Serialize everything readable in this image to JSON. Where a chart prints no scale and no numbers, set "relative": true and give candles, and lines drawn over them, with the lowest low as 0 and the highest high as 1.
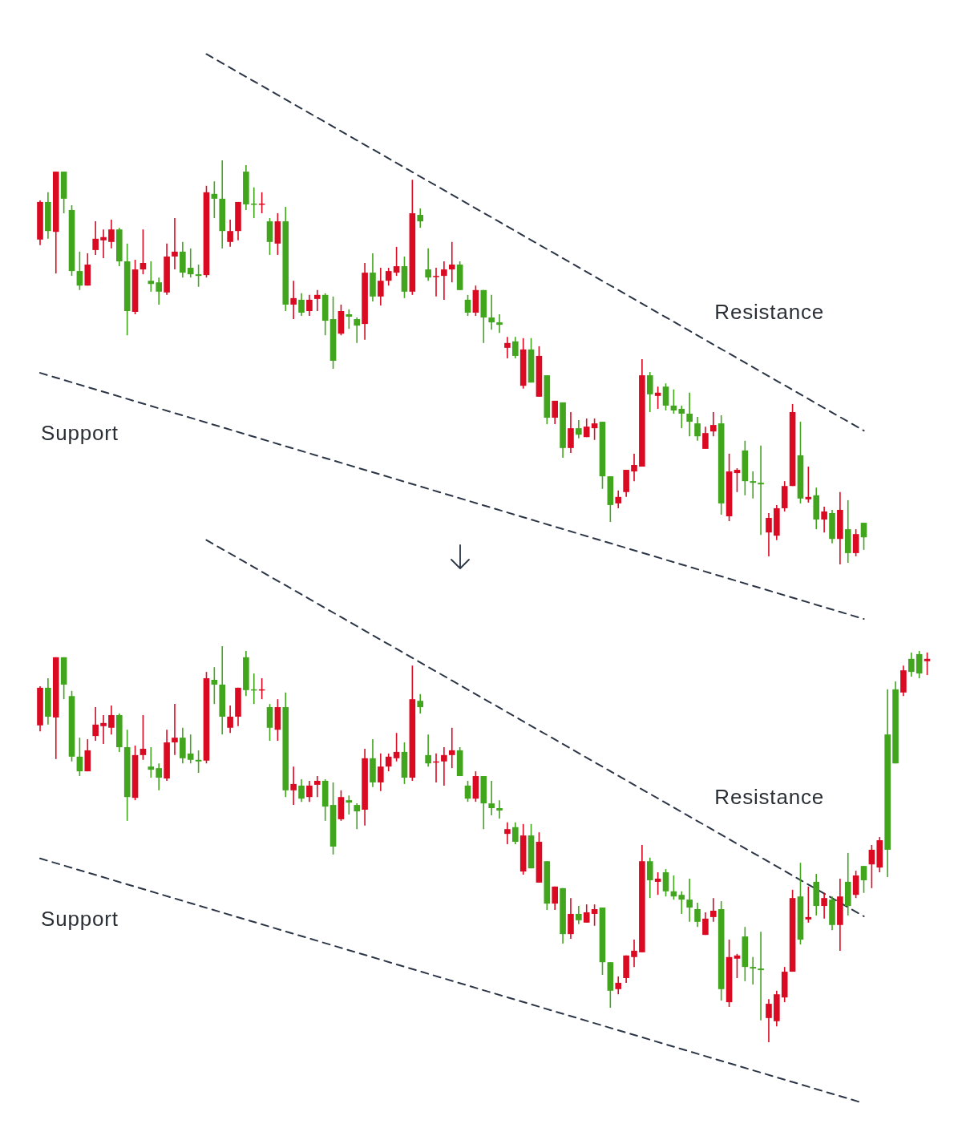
{
  "chart_data": [
    {
      "type": "candlestick",
      "relative": true,
      "categories": [
        null,
        null,
        null,
        null,
        null,
        null,
        null,
        null,
        null,
        null,
        null,
        null,
        null,
        null,
        null,
        null,
        null,
        null,
        null,
        null,
        null,
        null,
        null,
        null,
        null,
        null,
        null,
        null,
        null,
        null,
        null,
        null,
        null,
        null,
        null,
        null,
        null,
        null,
        null,
        null,
        null,
        null,
        null,
        null,
        null,
        null,
        null,
        null,
        null,
        null,
        null,
        null,
        null,
        null,
        null,
        null,
        null,
        null,
        null,
        null,
        null,
        null,
        null,
        null,
        null,
        null,
        null,
        null,
        null,
        null,
        null,
        null,
        null,
        null,
        null,
        null,
        null,
        null,
        null,
        null,
        null,
        null,
        null,
        null,
        null,
        null,
        null,
        null,
        null,
        null,
        null,
        null,
        null,
        null,
        null,
        null,
        null,
        null,
        null,
        null,
        null,
        null,
        null,
        null,
        null
      ],
      "ohlc": [
        [
          0.897,
          0.901,
          0.79,
          0.804
        ],
        [
          0.825,
          0.921,
          0.806,
          0.897
        ],
        [
          0.972,
          0.972,
          0.72,
          0.823
        ],
        [
          0.905,
          0.972,
          0.869,
          0.972
        ],
        [
          0.726,
          0.889,
          0.714,
          0.877
        ],
        [
          0.69,
          0.774,
          0.679,
          0.726
        ],
        [
          0.742,
          0.77,
          0.69,
          0.69
        ],
        [
          0.806,
          0.849,
          0.766,
          0.778
        ],
        [
          0.81,
          0.829,
          0.758,
          0.802
        ],
        [
          0.829,
          0.853,
          0.782,
          0.798
        ],
        [
          0.75,
          0.833,
          0.738,
          0.829
        ],
        [
          0.627,
          0.794,
          0.567,
          0.75
        ],
        [
          0.73,
          0.754,
          0.619,
          0.625
        ],
        [
          0.746,
          0.829,
          0.718,
          0.73
        ],
        [
          0.694,
          0.75,
          0.675,
          0.702
        ],
        [
          0.675,
          0.71,
          0.643,
          0.698
        ],
        [
          0.762,
          0.794,
          0.667,
          0.673
        ],
        [
          0.774,
          0.857,
          0.73,
          0.762
        ],
        [
          0.722,
          0.798,
          0.71,
          0.774
        ],
        [
          0.718,
          0.782,
          0.71,
          0.734
        ],
        [
          0.714,
          0.742,
          0.687,
          0.718
        ],
        [
          0.921,
          0.937,
          0.71,
          0.716
        ],
        [
          0.905,
          0.948,
          0.857,
          0.917
        ],
        [
          0.825,
          1.0,
          0.782,
          0.905
        ],
        [
          0.825,
          0.853,
          0.786,
          0.798
        ],
        [
          0.897,
          0.897,
          0.802,
          0.825
        ],
        [
          0.891,
          0.988,
          0.877,
          0.972
        ],
        [
          0.891,
          0.933,
          0.857,
          0.893
        ],
        [
          0.893,
          0.921,
          0.869,
          0.891
        ],
        [
          0.798,
          0.857,
          0.766,
          0.849
        ],
        [
          0.849,
          0.869,
          0.766,
          0.794
        ],
        [
          0.643,
          0.885,
          0.627,
          0.849
        ],
        [
          0.659,
          0.702,
          0.607,
          0.643
        ],
        [
          0.623,
          0.671,
          0.615,
          0.655
        ],
        [
          0.655,
          0.667,
          0.615,
          0.627
        ],
        [
          0.667,
          0.679,
          0.627,
          0.657
        ],
        [
          0.603,
          0.671,
          0.567,
          0.667
        ],
        [
          0.504,
          0.663,
          0.484,
          0.607
        ],
        [
          0.627,
          0.643,
          0.567,
          0.571
        ],
        [
          0.613,
          0.631,
          0.583,
          0.619
        ],
        [
          0.591,
          0.611,
          0.548,
          0.607
        ],
        [
          0.722,
          0.746,
          0.556,
          0.595
        ],
        [
          0.663,
          0.77,
          0.651,
          0.722
        ],
        [
          0.702,
          0.734,
          0.641,
          0.663
        ],
        [
          0.726,
          0.734,
          0.69,
          0.702
        ],
        [
          0.738,
          0.786,
          0.714,
          0.722
        ],
        [
          0.675,
          0.762,
          0.659,
          0.738
        ],
        [
          0.869,
          0.952,
          0.667,
          0.675
        ],
        [
          0.849,
          0.881,
          0.833,
          0.865
        ],
        [
          0.71,
          0.782,
          0.702,
          0.73
        ],
        [
          0.714,
          0.734,
          0.663,
          0.712
        ],
        [
          0.73,
          0.75,
          0.655,
          0.714
        ],
        [
          0.742,
          0.798,
          0.698,
          0.73
        ],
        [
          0.679,
          0.75,
          0.679,
          0.742
        ],
        [
          0.623,
          0.667,
          0.615,
          0.655
        ],
        [
          0.679,
          0.69,
          0.615,
          0.623
        ],
        [
          0.611,
          0.679,
          0.548,
          0.679
        ],
        [
          0.599,
          0.667,
          0.581,
          0.611
        ],
        [
          0.593,
          0.619,
          0.573,
          0.599
        ],
        [
          0.548,
          0.563,
          0.51,
          0.536
        ],
        [
          0.516,
          0.563,
          0.51,
          0.552
        ],
        [
          0.532,
          0.56,
          0.435,
          0.442
        ],
        [
          0.45,
          0.56,
          0.45,
          0.532
        ],
        [
          0.516,
          0.54,
          0.415,
          0.415
        ],
        [
          0.363,
          0.468,
          0.347,
          0.468
        ],
        [
          0.405,
          0.405,
          0.347,
          0.363
        ],
        [
          0.288,
          0.401,
          0.264,
          0.401
        ],
        [
          0.337,
          0.377,
          0.276,
          0.288
        ],
        [
          0.321,
          0.357,
          0.312,
          0.337
        ],
        [
          0.341,
          0.361,
          0.315,
          0.315
        ],
        [
          0.349,
          0.361,
          0.308,
          0.337
        ],
        [
          0.218,
          0.353,
          0.187,
          0.353
        ],
        [
          0.147,
          0.218,
          0.105,
          0.218
        ],
        [
          0.167,
          0.183,
          0.139,
          0.151
        ],
        [
          0.234,
          0.234,
          0.167,
          0.179
        ],
        [
          0.246,
          0.274,
          0.206,
          0.23
        ],
        [
          0.468,
          0.508,
          0.242,
          0.242
        ],
        [
          0.421,
          0.476,
          0.377,
          0.468
        ],
        [
          0.425,
          0.44,
          0.385,
          0.417
        ],
        [
          0.393,
          0.448,
          0.381,
          0.44
        ],
        [
          0.381,
          0.433,
          0.373,
          0.393
        ],
        [
          0.373,
          0.393,
          0.337,
          0.385
        ],
        [
          0.353,
          0.425,
          0.317,
          0.373
        ],
        [
          0.317,
          0.365,
          0.306,
          0.349
        ],
        [
          0.325,
          0.341,
          0.286,
          0.286
        ],
        [
          0.345,
          0.377,
          0.317,
          0.329
        ],
        [
          0.151,
          0.369,
          0.123,
          0.349
        ],
        [
          0.23,
          0.274,
          0.107,
          0.119
        ],
        [
          0.234,
          0.238,
          0.179,
          0.226
        ],
        [
          0.206,
          0.306,
          0.171,
          0.282
        ],
        [
          0.202,
          0.23,
          0.163,
          0.206
        ],
        [
          0.198,
          0.294,
          0.073,
          0.202
        ],
        [
          0.115,
          0.127,
          0.02,
          0.079
        ],
        [
          0.139,
          0.147,
          0.06,
          0.071
        ],
        [
          0.194,
          0.206,
          0.131,
          0.139
        ],
        [
          0.377,
          0.397,
          0.194,
          0.194
        ],
        [
          0.163,
          0.353,
          0.151,
          0.27
        ],
        [
          0.167,
          0.242,
          0.153,
          0.161
        ],
        [
          0.111,
          0.19,
          0.087,
          0.171
        ],
        [
          0.131,
          0.143,
          0.079,
          0.111
        ],
        [
          0.063,
          0.135,
          0.052,
          0.127
        ],
        [
          0.135,
          0.179,
          0.0,
          0.063
        ],
        [
          0.028,
          0.159,
          0.004,
          0.087
        ],
        [
          0.075,
          0.087,
          0.02,
          0.028
        ],
        [
          0.067,
          0.103,
          0.036,
          0.103
        ]
      ],
      "colors": [
        "#da0a23",
        "#41a51d",
        "#da0a23",
        "#41a51d",
        "#41a51d",
        "#41a51d",
        "#da0a23",
        "#da0a23",
        "#da0a23",
        "#da0a23",
        "#41a51d",
        "#41a51d",
        "#da0a23",
        "#da0a23",
        "#41a51d",
        "#41a51d",
        "#da0a23",
        "#da0a23",
        "#41a51d",
        "#41a51d",
        "#41a51d",
        "#da0a23",
        "#41a51d",
        "#41a51d",
        "#da0a23",
        "#da0a23",
        "#41a51d",
        "#41a51d",
        "#da0a23",
        "#41a51d",
        "#da0a23",
        "#41a51d",
        "#da0a23",
        "#41a51d",
        "#da0a23",
        "#da0a23",
        "#41a51d",
        "#41a51d",
        "#da0a23",
        "#41a51d",
        "#41a51d",
        "#da0a23",
        "#41a51d",
        "#da0a23",
        "#da0a23",
        "#da0a23",
        "#41a51d",
        "#da0a23",
        "#41a51d",
        "#41a51d",
        "#da0a23",
        "#da0a23",
        "#da0a23",
        "#41a51d",
        "#41a51d",
        "#da0a23",
        "#41a51d",
        "#41a51d",
        "#41a51d",
        "#da0a23",
        "#41a51d",
        "#da0a23",
        "#41a51d",
        "#da0a23",
        "#41a51d",
        "#da0a23",
        "#41a51d",
        "#da0a23",
        "#41a51d",
        "#da0a23",
        "#da0a23",
        "#41a51d",
        "#41a51d",
        "#da0a23",
        "#da0a23",
        "#da0a23",
        "#da0a23",
        "#41a51d",
        "#da0a23",
        "#41a51d",
        "#41a51d",
        "#41a51d",
        "#41a51d",
        "#41a51d",
        "#da0a23",
        "#da0a23",
        "#41a51d",
        "#da0a23",
        "#da0a23",
        "#41a51d",
        "#41a51d",
        "#41a51d",
        "#da0a23",
        "#da0a23",
        "#da0a23",
        "#da0a23",
        "#41a51d",
        "#da0a23",
        "#41a51d",
        "#da0a23",
        "#41a51d",
        "#da0a23",
        "#41a51d",
        "#da0a23",
        "#41a51d"
      ],
      "series": [
        {
          "type": "line",
          "name": "Resistance",
          "color": "#2b3545",
          "line_style": "dashed",
          "values": [
            null,
            null,
            null,
            null,
            null,
            null,
            null,
            null,
            null,
            null,
            null,
            null,
            null,
            null,
            null,
            null,
            null,
            null,
            null,
            null,
            null,
            1.263,
            null,
            null,
            null,
            null,
            null,
            null,
            null,
            null,
            null,
            null,
            null,
            null,
            null,
            null,
            null,
            null,
            null,
            null,
            null,
            null,
            null,
            null,
            null,
            null,
            null,
            null,
            null,
            null,
            null,
            null,
            null,
            null,
            null,
            null,
            null,
            null,
            null,
            null,
            null,
            null,
            null,
            null,
            null,
            null,
            null,
            null,
            null,
            null,
            null,
            null,
            null,
            null,
            null,
            null,
            null,
            null,
            null,
            null,
            null,
            null,
            null,
            null,
            null,
            null,
            null,
            null,
            null,
            null,
            null,
            null,
            null,
            null,
            null,
            null,
            null,
            null,
            null,
            null,
            null,
            null,
            null,
            null,
            0.331
          ]
        },
        {
          "type": "line",
          "name": "Support",
          "color": "#2b3545",
          "line_style": "dashed",
          "values": [
            0.474,
            null,
            null,
            null,
            null,
            null,
            null,
            null,
            null,
            null,
            null,
            null,
            null,
            null,
            null,
            null,
            null,
            null,
            null,
            null,
            null,
            null,
            null,
            null,
            null,
            null,
            null,
            null,
            null,
            null,
            null,
            null,
            null,
            null,
            null,
            null,
            null,
            null,
            null,
            null,
            null,
            null,
            null,
            null,
            null,
            null,
            null,
            null,
            null,
            null,
            null,
            null,
            null,
            null,
            null,
            null,
            null,
            null,
            null,
            null,
            null,
            null,
            null,
            null,
            null,
            null,
            null,
            null,
            null,
            null,
            null,
            null,
            null,
            null,
            null,
            null,
            null,
            null,
            null,
            null,
            null,
            null,
            null,
            null,
            null,
            null,
            null,
            null,
            null,
            null,
            null,
            null,
            null,
            null,
            null,
            null,
            null,
            null,
            null,
            null,
            null,
            null,
            null,
            null,
            -0.135
          ]
        }
      ]
    },
    {
      "type": "candlestick",
      "relative": true,
      "categories": [
        null,
        null,
        null,
        null,
        null,
        null,
        null,
        null,
        null,
        null,
        null,
        null,
        null,
        null,
        null,
        null,
        null,
        null,
        null,
        null,
        null,
        null,
        null,
        null,
        null,
        null,
        null,
        null,
        null,
        null,
        null,
        null,
        null,
        null,
        null,
        null,
        null,
        null,
        null,
        null,
        null,
        null,
        null,
        null,
        null,
        null,
        null,
        null,
        null,
        null,
        null,
        null,
        null,
        null,
        null,
        null,
        null,
        null,
        null,
        null,
        null,
        null,
        null,
        null,
        null,
        null,
        null,
        null,
        null,
        null,
        null,
        null,
        null,
        null,
        null,
        null,
        null,
        null,
        null,
        null,
        null,
        null,
        null,
        null,
        null,
        null,
        null,
        null,
        null,
        null,
        null,
        null,
        null,
        null,
        null,
        null,
        null,
        null,
        null,
        null,
        null,
        null,
        null,
        null,
        null,
        null,
        null,
        null,
        null,
        null,
        null,
        null,
        null
      ],
      "ohlc": [
        [
          0.895,
          0.899,
          0.785,
          0.8
        ],
        [
          0.822,
          0.919,
          0.802,
          0.895
        ],
        [
          0.972,
          0.972,
          0.715,
          0.82
        ],
        [
          0.903,
          0.972,
          0.866,
          0.972
        ],
        [
          0.721,
          0.887,
          0.709,
          0.874
        ],
        [
          0.684,
          0.769,
          0.672,
          0.721
        ],
        [
          0.737,
          0.765,
          0.684,
          0.684
        ],
        [
          0.802,
          0.846,
          0.761,
          0.773
        ],
        [
          0.806,
          0.826,
          0.753,
          0.798
        ],
        [
          0.826,
          0.85,
          0.777,
          0.794
        ],
        [
          0.745,
          0.83,
          0.733,
          0.826
        ],
        [
          0.619,
          0.789,
          0.559,
          0.745
        ],
        [
          0.725,
          0.749,
          0.611,
          0.617
        ],
        [
          0.741,
          0.826,
          0.713,
          0.725
        ],
        [
          0.688,
          0.745,
          0.668,
          0.696
        ],
        [
          0.668,
          0.704,
          0.636,
          0.692
        ],
        [
          0.757,
          0.789,
          0.66,
          0.666
        ],
        [
          0.769,
          0.854,
          0.725,
          0.757
        ],
        [
          0.717,
          0.794,
          0.704,
          0.769
        ],
        [
          0.713,
          0.777,
          0.704,
          0.729
        ],
        [
          0.709,
          0.737,
          0.68,
          0.713
        ],
        [
          0.919,
          0.935,
          0.704,
          0.711
        ],
        [
          0.903,
          0.947,
          0.854,
          0.915
        ],
        [
          0.822,
          1.0,
          0.777,
          0.903
        ],
        [
          0.822,
          0.85,
          0.781,
          0.794
        ],
        [
          0.895,
          0.895,
          0.798,
          0.822
        ],
        [
          0.889,
          0.988,
          0.874,
          0.972
        ],
        [
          0.889,
          0.931,
          0.854,
          0.891
        ],
        [
          0.891,
          0.919,
          0.866,
          0.889
        ],
        [
          0.794,
          0.854,
          0.761,
          0.846
        ],
        [
          0.846,
          0.866,
          0.761,
          0.789
        ],
        [
          0.636,
          0.883,
          0.619,
          0.846
        ],
        [
          0.652,
          0.696,
          0.599,
          0.636
        ],
        [
          0.615,
          0.664,
          0.607,
          0.648
        ],
        [
          0.648,
          0.66,
          0.607,
          0.619
        ],
        [
          0.66,
          0.672,
          0.619,
          0.65
        ],
        [
          0.595,
          0.664,
          0.559,
          0.66
        ],
        [
          0.494,
          0.656,
          0.474,
          0.599
        ],
        [
          0.619,
          0.636,
          0.559,
          0.563
        ],
        [
          0.605,
          0.623,
          0.575,
          0.611
        ],
        [
          0.583,
          0.603,
          0.538,
          0.599
        ],
        [
          0.717,
          0.741,
          0.547,
          0.587
        ],
        [
          0.656,
          0.765,
          0.644,
          0.717
        ],
        [
          0.696,
          0.729,
          0.634,
          0.656
        ],
        [
          0.721,
          0.729,
          0.684,
          0.696
        ],
        [
          0.733,
          0.781,
          0.709,
          0.717
        ],
        [
          0.668,
          0.757,
          0.652,
          0.733
        ],
        [
          0.866,
          0.951,
          0.66,
          0.668
        ],
        [
          0.846,
          0.879,
          0.83,
          0.862
        ],
        [
          0.704,
          0.777,
          0.696,
          0.725
        ],
        [
          0.709,
          0.729,
          0.656,
          0.706
        ],
        [
          0.725,
          0.745,
          0.648,
          0.709
        ],
        [
          0.737,
          0.794,
          0.692,
          0.725
        ],
        [
          0.672,
          0.745,
          0.672,
          0.737
        ],
        [
          0.615,
          0.66,
          0.607,
          0.648
        ],
        [
          0.672,
          0.684,
          0.607,
          0.615
        ],
        [
          0.603,
          0.672,
          0.538,
          0.672
        ],
        [
          0.591,
          0.66,
          0.573,
          0.603
        ],
        [
          0.585,
          0.611,
          0.565,
          0.591
        ],
        [
          0.538,
          0.555,
          0.5,
          0.526
        ],
        [
          0.506,
          0.555,
          0.5,
          0.543
        ],
        [
          0.522,
          0.551,
          0.423,
          0.431
        ],
        [
          0.439,
          0.551,
          0.439,
          0.522
        ],
        [
          0.506,
          0.53,
          0.403,
          0.403
        ],
        [
          0.35,
          0.457,
          0.334,
          0.457
        ],
        [
          0.393,
          0.393,
          0.334,
          0.35
        ],
        [
          0.273,
          0.389,
          0.249,
          0.389
        ],
        [
          0.324,
          0.364,
          0.261,
          0.273
        ],
        [
          0.308,
          0.344,
          0.298,
          0.324
        ],
        [
          0.328,
          0.348,
          0.302,
          0.302
        ],
        [
          0.336,
          0.348,
          0.294,
          0.324
        ],
        [
          0.202,
          0.34,
          0.17,
          0.34
        ],
        [
          0.13,
          0.202,
          0.087,
          0.202
        ],
        [
          0.15,
          0.166,
          0.121,
          0.134
        ],
        [
          0.219,
          0.219,
          0.15,
          0.162
        ],
        [
          0.231,
          0.259,
          0.19,
          0.215
        ],
        [
          0.457,
          0.498,
          0.227,
          0.227
        ],
        [
          0.409,
          0.466,
          0.364,
          0.457
        ],
        [
          0.413,
          0.429,
          0.372,
          0.405
        ],
        [
          0.381,
          0.437,
          0.368,
          0.429
        ],
        [
          0.368,
          0.421,
          0.36,
          0.381
        ],
        [
          0.36,
          0.381,
          0.324,
          0.372
        ],
        [
          0.34,
          0.413,
          0.304,
          0.36
        ],
        [
          0.304,
          0.352,
          0.291,
          0.336
        ],
        [
          0.312,
          0.328,
          0.271,
          0.271
        ],
        [
          0.332,
          0.364,
          0.304,
          0.316
        ],
        [
          0.134,
          0.356,
          0.105,
          0.336
        ],
        [
          0.215,
          0.259,
          0.089,
          0.101
        ],
        [
          0.219,
          0.223,
          0.162,
          0.211
        ],
        [
          0.19,
          0.291,
          0.154,
          0.267
        ],
        [
          0.186,
          0.215,
          0.146,
          0.19
        ],
        [
          0.182,
          0.279,
          0.055,
          0.186
        ],
        [
          0.097,
          0.109,
          0.0,
          0.061
        ],
        [
          0.121,
          0.13,
          0.04,
          0.053
        ],
        [
          0.178,
          0.19,
          0.101,
          0.113
        ],
        [
          0.364,
          0.385,
          0.178,
          0.178
        ],
        [
          0.259,
          0.453,
          0.247,
          0.368
        ],
        [
          0.316,
          0.393,
          0.302,
          0.31
        ],
        [
          0.344,
          0.425,
          0.32,
          0.405
        ],
        [
          0.364,
          0.377,
          0.312,
          0.344
        ],
        [
          0.296,
          0.368,
          0.283,
          0.36
        ],
        [
          0.368,
          0.413,
          0.231,
          0.296
        ],
        [
          0.344,
          0.478,
          0.32,
          0.405
        ],
        [
          0.421,
          0.433,
          0.364,
          0.372
        ],
        [
          0.409,
          0.445,
          0.377,
          0.445
        ],
        [
          0.486,
          0.498,
          0.389,
          0.449
        ],
        [
          0.51,
          0.518,
          0.429,
          0.441
        ],
        [
          0.486,
          0.891,
          0.417,
          0.777
        ],
        [
          0.704,
          0.911,
          0.704,
          0.891
        ],
        [
          0.939,
          0.951,
          0.874,
          0.883
        ],
        [
          0.935,
          0.984,
          0.923,
          0.968
        ],
        [
          0.931,
          0.988,
          0.919,
          0.98
        ],
        [
          0.968,
          0.984,
          0.927,
          0.962
        ]
      ],
      "colors": [
        "#da0a23",
        "#41a51d",
        "#da0a23",
        "#41a51d",
        "#41a51d",
        "#41a51d",
        "#da0a23",
        "#da0a23",
        "#da0a23",
        "#da0a23",
        "#41a51d",
        "#41a51d",
        "#da0a23",
        "#da0a23",
        "#41a51d",
        "#41a51d",
        "#da0a23",
        "#da0a23",
        "#41a51d",
        "#41a51d",
        "#41a51d",
        "#da0a23",
        "#41a51d",
        "#41a51d",
        "#da0a23",
        "#da0a23",
        "#41a51d",
        "#41a51d",
        "#da0a23",
        "#41a51d",
        "#da0a23",
        "#41a51d",
        "#da0a23",
        "#41a51d",
        "#da0a23",
        "#da0a23",
        "#41a51d",
        "#41a51d",
        "#da0a23",
        "#41a51d",
        "#41a51d",
        "#da0a23",
        "#41a51d",
        "#da0a23",
        "#da0a23",
        "#da0a23",
        "#41a51d",
        "#da0a23",
        "#41a51d",
        "#41a51d",
        "#da0a23",
        "#da0a23",
        "#da0a23",
        "#41a51d",
        "#41a51d",
        "#da0a23",
        "#41a51d",
        "#41a51d",
        "#41a51d",
        "#da0a23",
        "#41a51d",
        "#da0a23",
        "#41a51d",
        "#da0a23",
        "#41a51d",
        "#da0a23",
        "#41a51d",
        "#da0a23",
        "#41a51d",
        "#da0a23",
        "#da0a23",
        "#41a51d",
        "#41a51d",
        "#da0a23",
        "#da0a23",
        "#da0a23",
        "#da0a23",
        "#41a51d",
        "#da0a23",
        "#41a51d",
        "#41a51d",
        "#41a51d",
        "#41a51d",
        "#41a51d",
        "#da0a23",
        "#da0a23",
        "#41a51d",
        "#da0a23",
        "#da0a23",
        "#41a51d",
        "#41a51d",
        "#41a51d",
        "#da0a23",
        "#da0a23",
        "#da0a23",
        "#da0a23",
        "#41a51d",
        "#da0a23",
        "#41a51d",
        "#da0a23",
        "#41a51d",
        "#da0a23",
        "#41a51d",
        "#da0a23",
        "#41a51d",
        "#da0a23",
        "#da0a23",
        "#41a51d",
        "#41a51d",
        "#da0a23",
        "#41a51d",
        "#41a51d",
        "#da0a23"
      ],
      "series": [
        {
          "type": "line",
          "name": "Resistance",
          "color": "#2b3545",
          "line_style": "dashed",
          "values": [
            null,
            null,
            null,
            null,
            null,
            null,
            null,
            null,
            null,
            null,
            null,
            null,
            null,
            null,
            null,
            null,
            null,
            null,
            null,
            null,
            null,
            1.268,
            null,
            null,
            null,
            null,
            null,
            null,
            null,
            null,
            null,
            null,
            null,
            null,
            null,
            null,
            null,
            null,
            null,
            null,
            null,
            null,
            null,
            null,
            null,
            null,
            null,
            null,
            null,
            null,
            null,
            null,
            null,
            null,
            null,
            null,
            null,
            null,
            null,
            null,
            null,
            null,
            null,
            null,
            null,
            null,
            null,
            null,
            null,
            null,
            null,
            null,
            null,
            null,
            null,
            null,
            null,
            null,
            null,
            null,
            null,
            null,
            null,
            null,
            null,
            null,
            null,
            null,
            null,
            null,
            null,
            null,
            null,
            null,
            null,
            null,
            null,
            null,
            null,
            null,
            null,
            null,
            null,
            null,
            0.318,
            null,
            null,
            null,
            null,
            null,
            null,
            null,
            null
          ]
        },
        {
          "type": "line",
          "name": "Support",
          "color": "#2b3545",
          "line_style": "dashed",
          "values": [
            0.464,
            null,
            null,
            null,
            null,
            null,
            null,
            null,
            null,
            null,
            null,
            null,
            null,
            null,
            null,
            null,
            null,
            null,
            null,
            null,
            null,
            null,
            null,
            null,
            null,
            null,
            null,
            null,
            null,
            null,
            null,
            null,
            null,
            null,
            null,
            null,
            null,
            null,
            null,
            null,
            null,
            null,
            null,
            null,
            null,
            null,
            null,
            null,
            null,
            null,
            null,
            null,
            null,
            null,
            null,
            null,
            null,
            null,
            null,
            null,
            null,
            null,
            null,
            null,
            null,
            null,
            null,
            null,
            null,
            null,
            null,
            null,
            null,
            null,
            null,
            null,
            null,
            null,
            null,
            null,
            null,
            null,
            null,
            null,
            null,
            null,
            null,
            null,
            null,
            null,
            null,
            null,
            null,
            null,
            null,
            null,
            null,
            null,
            null,
            null,
            null,
            null,
            null,
            null,
            -0.154,
            null,
            null,
            null,
            null,
            null,
            null,
            null,
            null
          ]
        }
      ]
    }
  ]
}
